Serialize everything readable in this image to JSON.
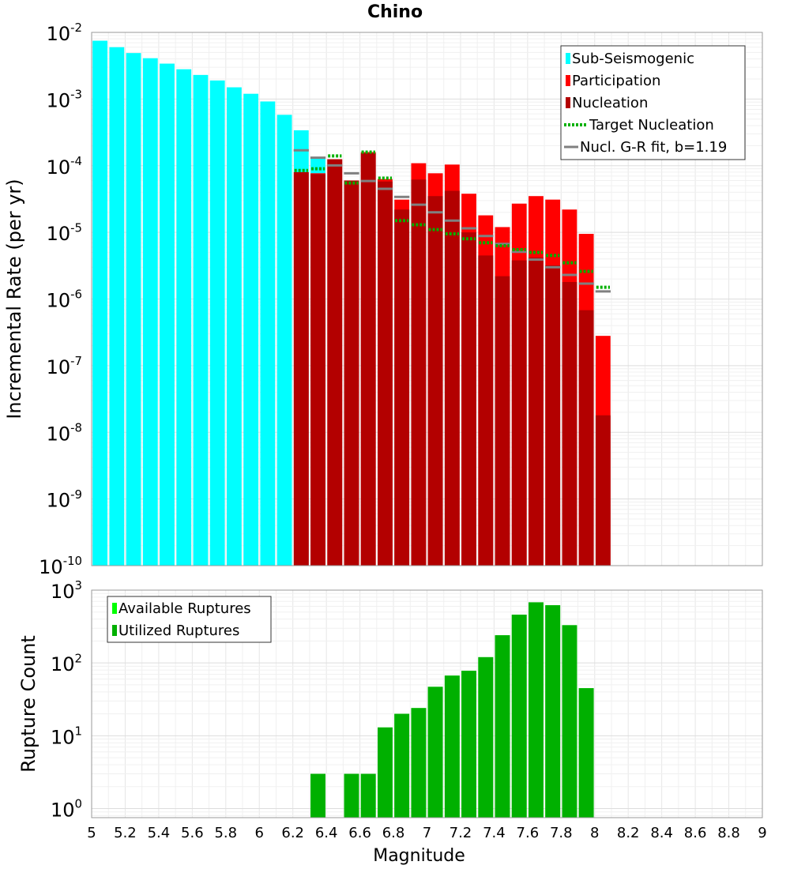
{
  "chart_data": [
    {
      "type": "bar",
      "title": "Chino",
      "xlabel": "",
      "ylabel": "Incremental Rate (per yr)",
      "xlim": [
        5,
        9
      ],
      "ylim": [
        1e-10,
        0.01
      ],
      "yscale": "log",
      "bin_width": 0.1,
      "ytick_labels": [
        {
          "base": "10",
          "exp": "-10"
        },
        {
          "base": "10",
          "exp": "-9"
        },
        {
          "base": "10",
          "exp": "-8"
        },
        {
          "base": "10",
          "exp": "-7"
        },
        {
          "base": "10",
          "exp": "-6"
        },
        {
          "base": "10",
          "exp": "-5"
        },
        {
          "base": "10",
          "exp": "-4"
        },
        {
          "base": "10",
          "exp": "-3"
        },
        {
          "base": "10",
          "exp": "-2"
        }
      ],
      "legend_position": "top-right",
      "legend": [
        "Sub-Seismogenic",
        "Participation",
        "Nucleation",
        "Target Nucleation",
        "Nucl. G-R fit, b=1.19"
      ],
      "colors": {
        "sub_seismogenic": "#00ffff",
        "participation": "#ff0000",
        "nucleation": "#b30000",
        "target_nucleation": "#00b000",
        "gr_fit": "#808080"
      },
      "series": [
        {
          "name": "Sub-Seismogenic",
          "x": [
            5.05,
            5.15,
            5.25,
            5.35,
            5.45,
            5.55,
            5.65,
            5.75,
            5.85,
            5.95,
            6.05,
            6.15,
            6.25,
            6.35
          ],
          "values": [
            0.0075,
            0.006,
            0.0049,
            0.0041,
            0.0034,
            0.0028,
            0.0023,
            0.0019,
            0.0015,
            0.0012,
            0.00092,
            0.00058,
            0.00034,
            0.00013
          ]
        },
        {
          "name": "Participation",
          "x": [
            6.25,
            6.35,
            6.45,
            6.55,
            6.65,
            6.75,
            6.85,
            6.95,
            7.05,
            7.15,
            7.25,
            7.35,
            7.45,
            7.55,
            7.65,
            7.75,
            7.85,
            7.95,
            8.05
          ],
          "values": [
            8e-05,
            7.7e-05,
            0.000125,
            6e-05,
            0.00016,
            6.3e-05,
            3.1e-05,
            0.000109,
            7.7e-05,
            0.000104,
            3.8e-05,
            1.8e-05,
            1.2e-05,
            2.7e-05,
            3.5e-05,
            3.1e-05,
            2.2e-05,
            9.5e-06,
            2.8e-07
          ]
        },
        {
          "name": "Nucleation",
          "x": [
            6.25,
            6.35,
            6.45,
            6.55,
            6.65,
            6.75,
            6.85,
            6.95,
            7.05,
            7.15,
            7.25,
            7.35,
            7.45,
            7.55,
            7.65,
            7.75,
            7.85,
            7.95,
            8.05
          ],
          "values": [
            8e-05,
            7.5e-05,
            0.000125,
            6e-05,
            0.000155,
            5.8e-05,
            2.2e-05,
            6.2e-05,
            3.5e-05,
            4.2e-05,
            1e-05,
            4.5e-06,
            2.2e-06,
            3.8e-06,
            4.2e-06,
            3.2e-06,
            1.8e-06,
            6.8e-07,
            1.8e-08
          ]
        },
        {
          "name": "Target Nucleation",
          "x": [
            6.25,
            6.35,
            6.45,
            6.55,
            6.65,
            6.75,
            6.85,
            6.95,
            7.05,
            7.15,
            7.25,
            7.35,
            7.45,
            7.55,
            7.65,
            7.75,
            7.85,
            7.95,
            8.05
          ],
          "values": [
            8.5e-05,
            9e-05,
            0.00014,
            5.5e-05,
            0.00016,
            6.5e-05,
            1.5e-05,
            1.3e-05,
            1.1e-05,
            9.5e-06,
            8e-06,
            7e-06,
            6.3e-06,
            5.5e-06,
            5e-06,
            4.5e-06,
            3.5e-06,
            2.6e-06,
            1.5e-06
          ]
        },
        {
          "name": "Nucl. G-R fit, b=1.19",
          "x": [
            6.25,
            6.35,
            6.45,
            6.55,
            6.65,
            6.75,
            6.85,
            6.95,
            7.05,
            7.15,
            7.25,
            7.35,
            7.45,
            7.55,
            7.65,
            7.75,
            7.85,
            7.95,
            8.05
          ],
          "values": [
            0.00017,
            0.000132,
            0.000101,
            7.7e-05,
            5.9e-05,
            4.5e-05,
            3.4e-05,
            2.6e-05,
            2e-05,
            1.5e-05,
            1.15e-05,
            8.8e-06,
            6.7e-06,
            5.1e-06,
            3.9e-06,
            3e-06,
            2.3e-06,
            1.7e-06,
            1.3e-06
          ]
        }
      ]
    },
    {
      "type": "bar",
      "title": "",
      "xlabel": "Magnitude",
      "ylabel": "Rupture Count",
      "xlim": [
        5,
        9
      ],
      "ylim": [
        0.75,
        1000
      ],
      "yscale": "log",
      "bin_width": 0.1,
      "xtick_labels": [
        "5",
        "5.2",
        "5.4",
        "5.6",
        "5.8",
        "6",
        "6.2",
        "6.4",
        "6.6",
        "6.8",
        "7",
        "7.2",
        "7.4",
        "7.6",
        "7.8",
        "8",
        "8.2",
        "8.4",
        "8.6",
        "8.8",
        "9"
      ],
      "ytick_labels": [
        {
          "base": "10",
          "exp": "0"
        },
        {
          "base": "10",
          "exp": "1"
        },
        {
          "base": "10",
          "exp": "2"
        },
        {
          "base": "10",
          "exp": "3"
        }
      ],
      "legend_position": "top-left",
      "legend": [
        "Available Ruptures",
        "Utilized Ruptures"
      ],
      "colors": {
        "available": "#00ff00",
        "utilized": "#00b000"
      },
      "series": [
        {
          "name": "Available Ruptures",
          "x": [
            6.35,
            6.55,
            6.65,
            6.75,
            6.85,
            6.95,
            7.05,
            7.15,
            7.25,
            7.35,
            7.45,
            7.55,
            7.65,
            7.75,
            7.85,
            7.95
          ],
          "values": [
            3,
            3,
            3,
            13,
            20,
            24,
            47,
            67,
            78,
            120,
            240,
            460,
            680,
            620,
            330,
            45
          ]
        },
        {
          "name": "Utilized Ruptures",
          "x": [
            6.35,
            6.55,
            6.65,
            6.75,
            6.85,
            6.95,
            7.05,
            7.15,
            7.25,
            7.35,
            7.45,
            7.55,
            7.65,
            7.75,
            7.85,
            7.95
          ],
          "values": [
            3,
            3,
            3,
            13,
            20,
            24,
            47,
            67,
            78,
            120,
            240,
            460,
            680,
            620,
            330,
            45
          ]
        }
      ]
    }
  ]
}
